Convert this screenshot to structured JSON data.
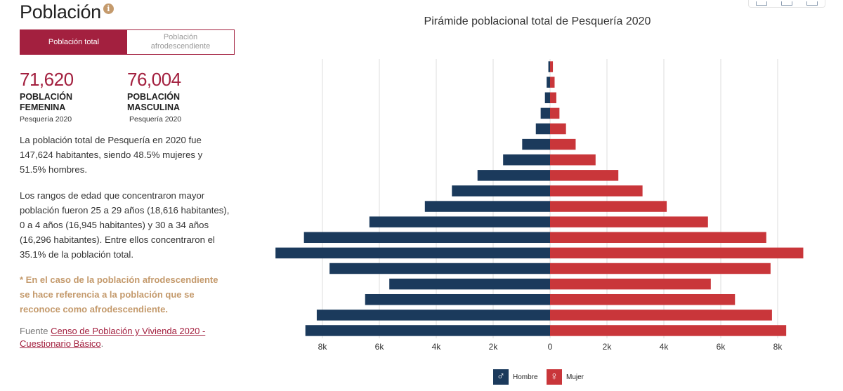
{
  "header": {
    "title": "Población",
    "info_icon": "info-icon"
  },
  "tabs": [
    {
      "label": "Población total",
      "active": true
    },
    {
      "label": "Población afrodescendiente",
      "active": false
    }
  ],
  "stats": {
    "female": {
      "value": "71,620",
      "label_line1": "POBLACIÓN",
      "label_line2": "FEMENINA",
      "sub": "Pesquería 2020"
    },
    "male": {
      "value": "76,004",
      "label_line1": "POBLACIÓN",
      "label_line2": "MASCULINA",
      "sub": "Pesquería 2020"
    }
  },
  "text": {
    "p1": "La población total de Pesquería en 2020 fue 147,624 habitantes, siendo 48.5% mujeres y 51.5% hombres.",
    "p2": "Los rangos de edad que concentraron mayor población fueron 25 a 29 años (18,616 habitantes), 0 a 4 años (16,945 habitantes) y 30 a 34 años (16,296 habitantes). Entre ellos concentraron el 35.1% de la población total.",
    "note": "* En el caso de la población afrodescendiente se hace referencia a la población que se reconoce como afrodescendiente.",
    "source_prefix": "Fuente ",
    "source_link": "Censo de Población y Vivienda 2020 - Cuestionario Básico",
    "source_suffix": "."
  },
  "colors": {
    "accent": "#a3203f",
    "male": "#1b3a5c",
    "female": "#c9363a",
    "note": "#c49a6c"
  },
  "legend": {
    "male": {
      "label": "Hombre",
      "icon": "male-symbol-icon"
    },
    "female": {
      "label": "Mujer",
      "icon": "female-symbol-icon"
    }
  },
  "chart_data": {
    "type": "bar",
    "orientation": "horizontal-pyramid",
    "title": "Pirámide poblacional total de Pesquería 2020",
    "xlim": [
      -8000,
      8000
    ],
    "x_ticks": [
      -8000,
      -6000,
      -4000,
      -2000,
      0,
      2000,
      4000,
      6000,
      8000
    ],
    "x_tick_labels": [
      "8k",
      "6k",
      "4k",
      "2k",
      "0",
      "2k",
      "4k",
      "6k",
      "8k"
    ],
    "grid": true,
    "legend_position": "bottom-center",
    "series": [
      {
        "name": "Hombre",
        "values": [
          60,
          120,
          180,
          330,
          500,
          980,
          1650,
          2550,
          3450,
          4400,
          6350,
          8650,
          9650,
          7750,
          5650,
          6500,
          8200,
          8600
        ]
      },
      {
        "name": "Mujer",
        "values": [
          100,
          160,
          220,
          330,
          560,
          900,
          1600,
          2400,
          3250,
          4100,
          5550,
          7600,
          8900,
          7750,
          5650,
          6500,
          7800,
          8300
        ]
      }
    ]
  }
}
